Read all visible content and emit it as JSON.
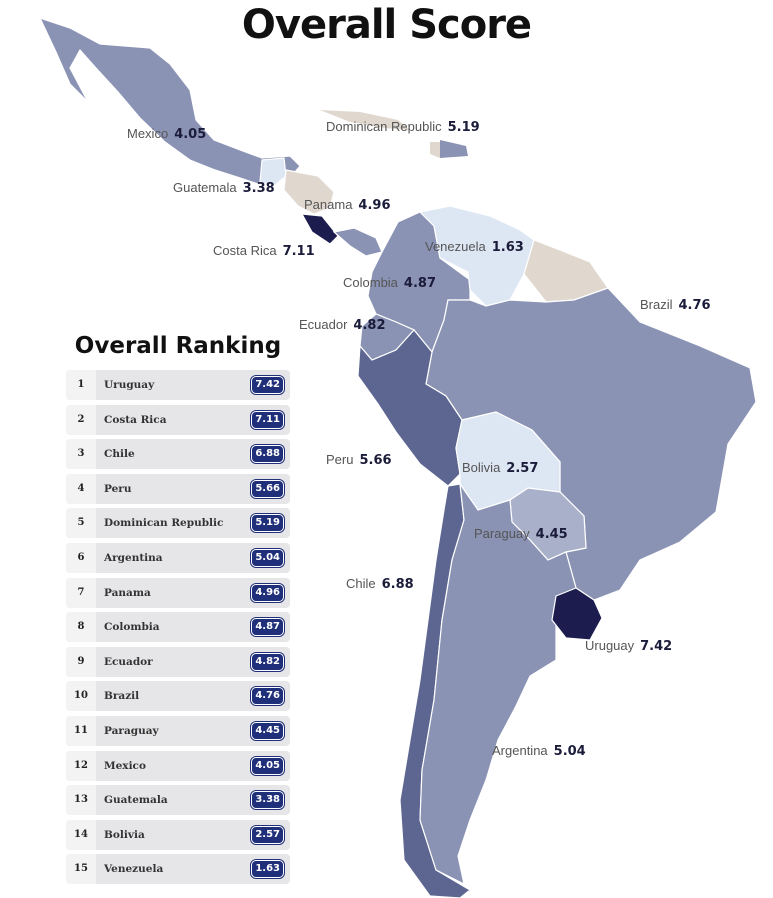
{
  "title": "Overall Score",
  "colors": {
    "uruguay": "#1c1c4e",
    "high": "#5c6690",
    "mid": "#8b93b5",
    "lowmid": "#a9b0c9",
    "low": "#dde6f3",
    "nodata": "#e0d8cf",
    "badge": "#1f2f7a"
  },
  "map_labels": [
    {
      "country": "Mexico",
      "score": "4.05"
    },
    {
      "country": "Dominican Republic",
      "score": "5.19"
    },
    {
      "country": "Guatemala",
      "score": "3.38"
    },
    {
      "country": "Panama",
      "score": "4.96"
    },
    {
      "country": "Costa Rica",
      "score": "7.11"
    },
    {
      "country": "Venezuela",
      "score": "1.63"
    },
    {
      "country": "Colombia",
      "score": "4.87"
    },
    {
      "country": "Brazil",
      "score": "4.76"
    },
    {
      "country": "Ecuador",
      "score": "4.82"
    },
    {
      "country": "Peru",
      "score": "5.66"
    },
    {
      "country": "Bolivia",
      "score": "2.57"
    },
    {
      "country": "Paraguay",
      "score": "4.45"
    },
    {
      "country": "Chile",
      "score": "6.88"
    },
    {
      "country": "Uruguay",
      "score": "7.42"
    },
    {
      "country": "Argentina",
      "score": "5.04"
    }
  ],
  "ranking": {
    "title": "Overall Ranking",
    "rows": [
      {
        "rank": "1",
        "country": "Uruguay",
        "score": "7.42"
      },
      {
        "rank": "2",
        "country": "Costa Rica",
        "score": "7.11"
      },
      {
        "rank": "3",
        "country": "Chile",
        "score": "6.88"
      },
      {
        "rank": "4",
        "country": "Peru",
        "score": "5.66"
      },
      {
        "rank": "5",
        "country": "Dominican Republic",
        "score": "5.19"
      },
      {
        "rank": "6",
        "country": "Argentina",
        "score": "5.04"
      },
      {
        "rank": "7",
        "country": "Panama",
        "score": "4.96"
      },
      {
        "rank": "8",
        "country": "Colombia",
        "score": "4.87"
      },
      {
        "rank": "9",
        "country": "Ecuador",
        "score": "4.82"
      },
      {
        "rank": "10",
        "country": "Brazil",
        "score": "4.76"
      },
      {
        "rank": "11",
        "country": "Paraguay",
        "score": "4.45"
      },
      {
        "rank": "12",
        "country": "Mexico",
        "score": "4.05"
      },
      {
        "rank": "13",
        "country": "Guatemala",
        "score": "3.38"
      },
      {
        "rank": "14",
        "country": "Bolivia",
        "score": "2.57"
      },
      {
        "rank": "15",
        "country": "Venezuela",
        "score": "1.63"
      }
    ]
  }
}
